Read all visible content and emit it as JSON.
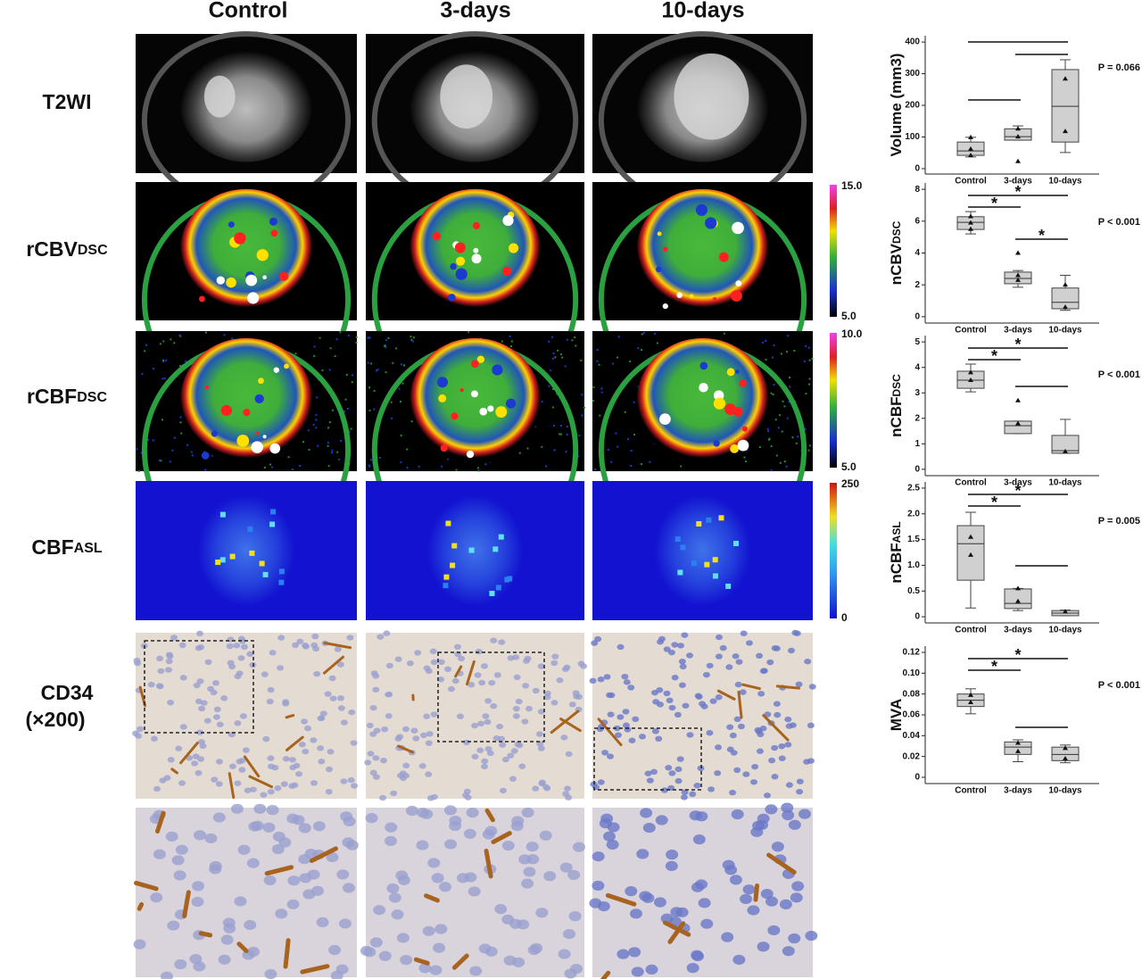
{
  "panel": {
    "columns": [
      "Control",
      "3-days",
      "10-days"
    ],
    "rows": [
      {
        "label": "T2WI"
      },
      {
        "label": "rCBV",
        "sub": "DSC"
      },
      {
        "label": "rCBF",
        "sub": "DSC"
      },
      {
        "label": "CBF",
        "sub": "ASL"
      },
      {
        "label": "CD34",
        "note": "(×200)"
      }
    ],
    "colorbars": [
      {
        "max": "15.0",
        "min": "5.0"
      },
      {
        "max": "10.0",
        "min": "5.0"
      },
      {
        "max": "250",
        "min": "0"
      }
    ]
  },
  "chart_data": [
    {
      "type": "box",
      "ylabel": "Volume (mm3)",
      "categories": [
        "Control",
        "3-days",
        "10-days"
      ],
      "boxes": [
        {
          "min": 37,
          "q1": 42,
          "median": 56,
          "q3": 84,
          "max": 99,
          "points": [
            99,
            62,
            42
          ]
        },
        {
          "min": 90,
          "q1": 90,
          "median": 101,
          "q3": 126,
          "max": 135,
          "points": [
            126,
            101,
            23
          ]
        },
        {
          "min": 51,
          "q1": 84,
          "median": 197,
          "q3": 313,
          "max": 344,
          "points": [
            284,
            118
          ]
        }
      ],
      "ylim": [
        -17,
        420
      ],
      "yticks": [
        0,
        100,
        200,
        300,
        400
      ],
      "brackets": [
        {
          "between": [
            "Control",
            "10-days"
          ]
        },
        {
          "between": [
            "3-days",
            "10-days"
          ]
        },
        {
          "between": [
            "Control",
            "3-days"
          ]
        }
      ],
      "annotation": "P = 0.066"
    },
    {
      "type": "box",
      "ylabel": "nCBV",
      "ylabel_sub": "DSC",
      "categories": [
        "Control",
        "3-days",
        "10-days"
      ],
      "boxes": [
        {
          "min": 5.2,
          "q1": 5.48,
          "median": 5.93,
          "q3": 6.28,
          "max": 6.6,
          "points": [
            6.3,
            5.9,
            5.5
          ]
        },
        {
          "min": 1.85,
          "q1": 2.07,
          "median": 2.4,
          "q3": 2.8,
          "max": 2.9,
          "points": [
            4.0,
            2.6,
            2.3
          ]
        },
        {
          "min": 0.4,
          "q1": 0.5,
          "median": 0.9,
          "q3": 1.8,
          "max": 2.6,
          "points": [
            2.0,
            0.6
          ]
        }
      ],
      "ylim": [
        -0.4,
        8.4
      ],
      "yticks": [
        0,
        2,
        4,
        6,
        8
      ],
      "brackets": [
        {
          "between": [
            "Control",
            "10-days"
          ],
          "label": "*"
        },
        {
          "between": [
            "Control",
            "3-days"
          ],
          "label": "*"
        },
        {
          "between": [
            "3-days",
            "10-days"
          ],
          "label": "*"
        }
      ],
      "annotation": "P < 0.001"
    },
    {
      "type": "box",
      "ylabel": "nCBF",
      "ylabel_sub": "DSC",
      "categories": [
        "Control",
        "3-days",
        "10-days"
      ],
      "boxes": [
        {
          "min": 3.04,
          "q1": 3.18,
          "median": 3.5,
          "q3": 3.85,
          "max": 4.13,
          "points": [
            3.8,
            3.5
          ]
        },
        {
          "min": 1.4,
          "q1": 1.4,
          "median": 1.71,
          "q3": 1.89,
          "max": 1.89,
          "points": [
            2.7,
            1.8
          ]
        },
        {
          "min": 0.63,
          "q1": 0.63,
          "median": 0.73,
          "q3": 1.33,
          "max": 1.96,
          "points": [
            0.7
          ]
        }
      ],
      "ylim": [
        -0.25,
        5.25
      ],
      "yticks": [
        0,
        1,
        2,
        3,
        4,
        5
      ],
      "brackets": [
        {
          "between": [
            "Control",
            "10-days"
          ],
          "label": "*"
        },
        {
          "between": [
            "Control",
            "3-days"
          ],
          "label": "*"
        },
        {
          "between": [
            "3-days",
            "10-days"
          ]
        }
      ],
      "annotation": "P < 0.001"
    },
    {
      "type": "box",
      "ylabel": "nCBF",
      "ylabel_sub": "ASL",
      "categories": [
        "Control",
        "3-days",
        "10-days"
      ],
      "boxes": [
        {
          "min": 0.17,
          "q1": 0.71,
          "median": 1.42,
          "q3": 1.77,
          "max": 2.03,
          "points": [
            1.55,
            1.2
          ]
        },
        {
          "min": 0.12,
          "q1": 0.16,
          "median": 0.26,
          "q3": 0.54,
          "max": 0.55,
          "points": [
            0.55,
            0.3
          ]
        },
        {
          "min": 0.02,
          "q1": 0.02,
          "median": 0.07,
          "q3": 0.12,
          "max": 0.13,
          "points": [
            0.1
          ]
        }
      ],
      "ylim": [
        -0.12,
        2.62
      ],
      "yticks": [
        0,
        0.5,
        {
          "value": 1,
          "label": "1.0"
        },
        1.5,
        {
          "value": 2,
          "label": "2.0"
        },
        2.5
      ],
      "brackets": [
        {
          "between": [
            "Control",
            "10-days"
          ],
          "label": "*"
        },
        {
          "between": [
            "Control",
            "3-days"
          ],
          "label": "*"
        },
        {
          "between": [
            "3-days",
            "10-days"
          ]
        }
      ],
      "annotation": "P = 0.005"
    },
    {
      "type": "box",
      "ylabel": "MVA",
      "categories": [
        "Control",
        "3-days",
        "10-days"
      ],
      "boxes": [
        {
          "min": 0.061,
          "q1": 0.068,
          "median": 0.074,
          "q3": 0.08,
          "max": 0.085,
          "points": [
            0.079,
            0.072
          ]
        },
        {
          "min": 0.015,
          "q1": 0.022,
          "median": 0.029,
          "q3": 0.034,
          "max": 0.036,
          "points": [
            0.033,
            0.025
          ]
        },
        {
          "min": 0.014,
          "q1": 0.016,
          "median": 0.022,
          "q3": 0.029,
          "max": 0.031,
          "points": [
            0.028,
            0.018
          ]
        }
      ],
      "ylim": [
        -0.006,
        0.126
      ],
      "yticks": [
        0,
        {
          "value": 0.02,
          "label": "0.02"
        },
        {
          "value": 0.04,
          "label": "0.04"
        },
        {
          "value": 0.06,
          "label": "0.06"
        },
        {
          "value": 0.08,
          "label": "0.08"
        },
        {
          "value": 0.1,
          "label": "0.10"
        },
        {
          "value": 0.12,
          "label": "0.12"
        }
      ],
      "brackets": [
        {
          "between": [
            "Control",
            "10-days"
          ],
          "label": "*"
        },
        {
          "between": [
            "Control",
            "3-days"
          ],
          "label": "*"
        },
        {
          "between": [
            "3-days",
            "10-days"
          ]
        }
      ],
      "annotation": "P < 0.001"
    }
  ]
}
